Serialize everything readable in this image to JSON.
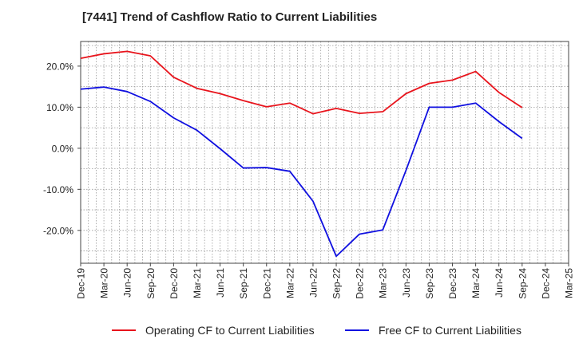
{
  "chart_data": {
    "type": "line",
    "title": "[7441]  Trend of Cashflow Ratio to Current Liabilities",
    "xlabel": "",
    "ylabel": "",
    "categories": [
      "Dec-19",
      "Mar-20",
      "Jun-20",
      "Sep-20",
      "Dec-20",
      "Mar-21",
      "Jun-21",
      "Sep-21",
      "Dec-21",
      "Mar-22",
      "Jun-22",
      "Sep-22",
      "Dec-22",
      "Mar-23",
      "Jun-23",
      "Sep-23",
      "Dec-23",
      "Mar-24",
      "Jun-24",
      "Sep-24",
      "Dec-24",
      "Mar-25"
    ],
    "yticks": [
      "-20.0%",
      "-10.0%",
      "0.0%",
      "10.0%",
      "20.0%"
    ],
    "ytick_values": [
      -20,
      -10,
      0,
      10,
      20
    ],
    "ylim": [
      -28,
      26
    ],
    "grid": true,
    "legend_position": "bottom",
    "series": [
      {
        "name": "Operating CF to Current Liabilities",
        "color": "#e8141c",
        "values": [
          21.9,
          23.0,
          23.6,
          22.5,
          17.3,
          14.6,
          13.3,
          11.6,
          10.1,
          11.0,
          8.4,
          9.7,
          8.5,
          8.9,
          13.3,
          15.8,
          16.6,
          18.7,
          13.6,
          9.9,
          null,
          null
        ]
      },
      {
        "name": "Free CF to Current Liabilities",
        "color": "#1010e0",
        "values": [
          14.4,
          14.9,
          13.8,
          11.4,
          7.4,
          4.4,
          -0.1,
          -4.8,
          -4.7,
          -5.6,
          -12.9,
          -26.3,
          -20.9,
          -19.9,
          -5.4,
          10.0,
          10.0,
          11.0,
          6.5,
          2.4,
          null,
          null
        ]
      }
    ]
  }
}
